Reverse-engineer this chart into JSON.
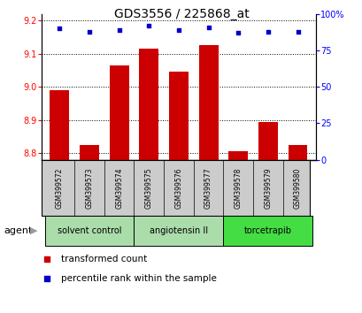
{
  "title": "GDS3556 / 225868_at",
  "samples": [
    "GSM399572",
    "GSM399573",
    "GSM399574",
    "GSM399575",
    "GSM399576",
    "GSM399577",
    "GSM399578",
    "GSM399579",
    "GSM399580"
  ],
  "red_values": [
    8.99,
    8.825,
    9.065,
    9.115,
    9.045,
    9.125,
    8.805,
    8.895,
    8.825
  ],
  "blue_values": [
    90,
    88,
    89,
    92,
    89,
    91,
    87,
    88,
    88
  ],
  "ylim_left": [
    8.78,
    9.22
  ],
  "ylim_right": [
    0,
    100
  ],
  "yticks_left": [
    8.8,
    8.9,
    9.0,
    9.1,
    9.2
  ],
  "yticks_right": [
    0,
    25,
    50,
    75,
    100
  ],
  "bar_color": "#cc0000",
  "dot_color": "#0000cc",
  "agent_label": "agent",
  "legend_red": "transformed count",
  "legend_blue": "percentile rank within the sample",
  "bar_bottom": 8.78,
  "bar_width": 0.65,
  "bg_sample_box": "#cccccc",
  "group_light_color": "#aaddaa",
  "group_dark_color": "#44dd44",
  "group_data": [
    {
      "label": "solvent control",
      "start": 0,
      "end": 2,
      "light": true
    },
    {
      "label": "angiotensin II",
      "start": 3,
      "end": 5,
      "light": true
    },
    {
      "label": "torcetrapib",
      "start": 6,
      "end": 8,
      "light": false
    }
  ]
}
